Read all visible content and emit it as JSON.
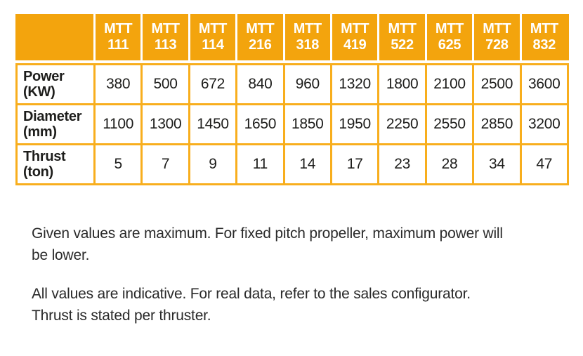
{
  "colors": {
    "header_orange": "#F3A40D",
    "grid_orange": "#F8AE1D",
    "text_dark": "#1d1d1b",
    "note_text": "#2a2a2a",
    "header_text": "#ffffff",
    "page_bg": "#ffffff"
  },
  "table": {
    "corner_label": "",
    "columns": [
      {
        "series": "MTT",
        "model": "111"
      },
      {
        "series": "MTT",
        "model": "113"
      },
      {
        "series": "MTT",
        "model": "114"
      },
      {
        "series": "MTT",
        "model": "216"
      },
      {
        "series": "MTT",
        "model": "318"
      },
      {
        "series": "MTT",
        "model": "419"
      },
      {
        "series": "MTT",
        "model": "522"
      },
      {
        "series": "MTT",
        "model": "625"
      },
      {
        "series": "MTT",
        "model": "728"
      },
      {
        "series": "MTT",
        "model": "832"
      }
    ],
    "rows": [
      {
        "label": "Power",
        "unit": "(KW)",
        "values": [
          "380",
          "500",
          "672",
          "840",
          "960",
          "1320",
          "1800",
          "2100",
          "2500",
          "3600"
        ]
      },
      {
        "label": "Diameter",
        "unit": "(mm)",
        "values": [
          "1100",
          "1300",
          "1450",
          "1650",
          "1850",
          "1950",
          "2250",
          "2550",
          "2850",
          "3200"
        ]
      },
      {
        "label": "Thrust",
        "unit": "(ton)",
        "values": [
          "5",
          "7",
          "9",
          "11",
          "14",
          "17",
          "23",
          "28",
          "34",
          "47"
        ]
      }
    ]
  },
  "notes": {
    "paragraph1": {
      "line1": "Given values are maximum. For fixed pitch propeller, maximum power will",
      "line2": "be lower."
    },
    "paragraph2": {
      "line1": "All values are indicative. For real data, refer to the sales configurator.",
      "line2": "Thrust is stated per thruster."
    }
  }
}
